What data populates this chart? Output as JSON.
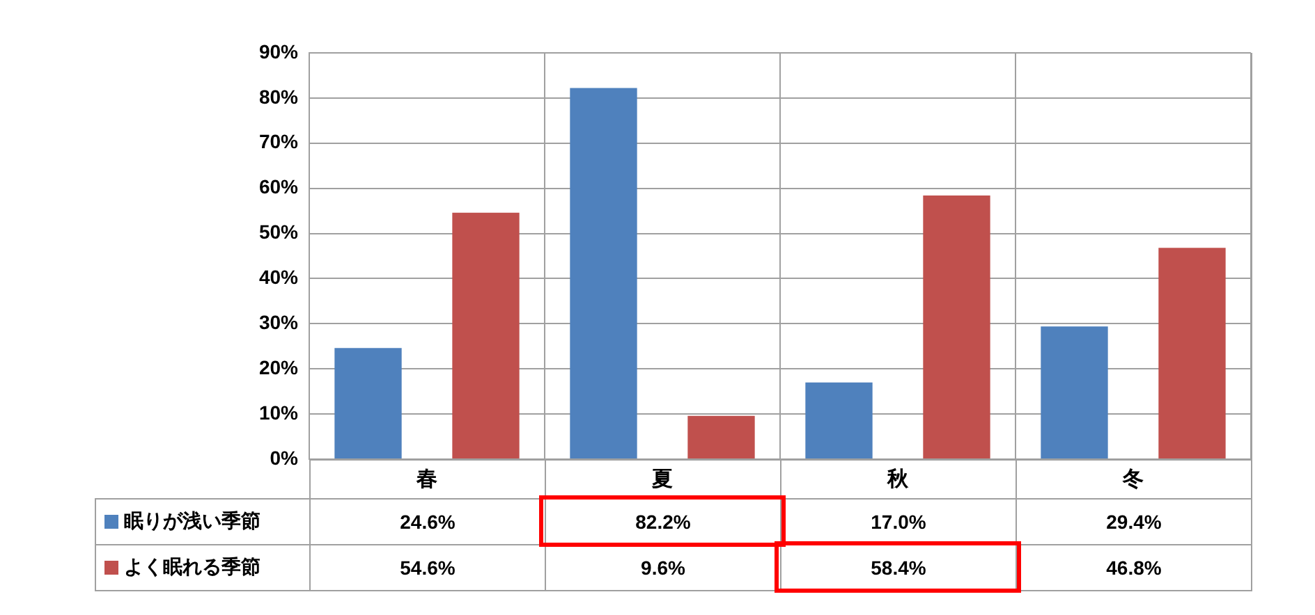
{
  "chart_data": {
    "type": "bar",
    "categories": [
      "春",
      "夏",
      "秋",
      "冬"
    ],
    "series": [
      {
        "name": "眠りが浅い季節",
        "color": "#4f81bd",
        "values": [
          24.6,
          82.2,
          17.0,
          29.4
        ],
        "value_labels": [
          "24.6%",
          "82.2%",
          "17.0%",
          "29.4%"
        ]
      },
      {
        "name": "よく眠れる季節",
        "color": "#c0504d",
        "values": [
          54.6,
          9.6,
          58.4,
          46.8
        ],
        "value_labels": [
          "54.6%",
          "9.6%",
          "58.4%",
          "46.8%"
        ]
      }
    ],
    "ylim": [
      0,
      90
    ],
    "yticks": [
      {
        "value": 0,
        "label": "0%"
      },
      {
        "value": 10,
        "label": "10%"
      },
      {
        "value": 20,
        "label": "20%"
      },
      {
        "value": 30,
        "label": "30%"
      },
      {
        "value": 40,
        "label": "40%"
      },
      {
        "value": 50,
        "label": "50%"
      },
      {
        "value": 60,
        "label": "60%"
      },
      {
        "value": 70,
        "label": "70%"
      },
      {
        "value": 80,
        "label": "80%"
      },
      {
        "value": 90,
        "label": "90%"
      }
    ],
    "grid": "y",
    "legend": "bottom"
  }
}
